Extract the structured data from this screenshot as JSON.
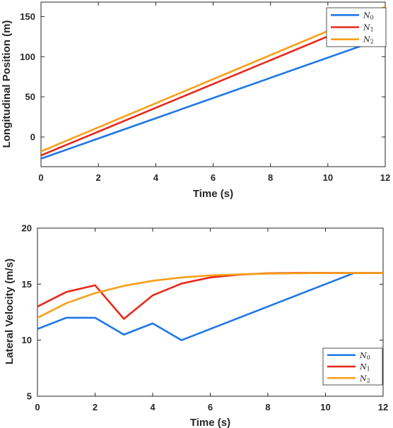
{
  "chart_data": [
    {
      "type": "line",
      "xlabel": "Time (s)",
      "ylabel": "Longitudinal Position (m)",
      "xlim": [
        0,
        12
      ],
      "ylim": [
        -37,
        168
      ],
      "xticks": [
        0,
        2,
        4,
        6,
        8,
        10,
        12
      ],
      "xtick_labels": [
        "0",
        "2",
        "4",
        "6",
        "8",
        "10",
        "12"
      ],
      "yticks": [
        0,
        50,
        100,
        150
      ],
      "ytick_labels": [
        "0",
        "50",
        "100",
        "150"
      ],
      "grid": false,
      "legend_position": "top-right",
      "series": [
        {
          "name": "N",
          "subscript": "0",
          "color": "#1f77e4",
          "x": [
            0,
            12
          ],
          "y": [
            -27,
            124
          ]
        },
        {
          "name": "N",
          "subscript": "1",
          "color": "#e8281a",
          "x": [
            0,
            12
          ],
          "y": [
            -23,
            155
          ]
        },
        {
          "name": "N",
          "subscript": "2",
          "color": "#f7a019",
          "x": [
            0,
            12
          ],
          "y": [
            -18,
            162
          ]
        }
      ]
    },
    {
      "type": "line",
      "xlabel": "Time (s)",
      "ylabel": "Lateral Velocity (m/s)",
      "xlim": [
        0,
        12
      ],
      "ylim": [
        5,
        20
      ],
      "xticks": [
        0,
        2,
        4,
        6,
        8,
        10,
        12
      ],
      "xtick_labels": [
        "0",
        "2",
        "4",
        "6",
        "8",
        "10",
        "12"
      ],
      "yticks": [
        5,
        10,
        15,
        20
      ],
      "ytick_labels": [
        "5",
        "10",
        "15",
        "20"
      ],
      "grid": false,
      "legend_position": "bottom-right",
      "series": [
        {
          "name": "N",
          "subscript": "0",
          "color": "#1f77e4",
          "x": [
            0,
            1,
            2,
            3,
            4,
            5,
            11,
            12
          ],
          "y": [
            11,
            12,
            12,
            10.5,
            11.5,
            10,
            16,
            16
          ]
        },
        {
          "name": "N",
          "subscript": "1",
          "color": "#e8281a",
          "x": [
            0,
            1,
            2,
            3,
            4,
            5,
            6,
            7,
            8,
            9,
            10,
            11,
            12
          ],
          "y": [
            13,
            14.3,
            14.9,
            11.9,
            14.0,
            15.05,
            15.6,
            15.85,
            15.97,
            16.0,
            16.0,
            16.0,
            16.0
          ]
        },
        {
          "name": "N",
          "subscript": "2",
          "color": "#f7a019",
          "x": [
            0,
            1,
            2,
            3,
            4,
            5,
            6,
            7,
            8,
            9,
            10,
            11,
            12
          ],
          "y": [
            12,
            13.3,
            14.2,
            14.85,
            15.3,
            15.6,
            15.78,
            15.88,
            15.94,
            15.97,
            15.99,
            16.0,
            16.0
          ]
        }
      ]
    }
  ]
}
